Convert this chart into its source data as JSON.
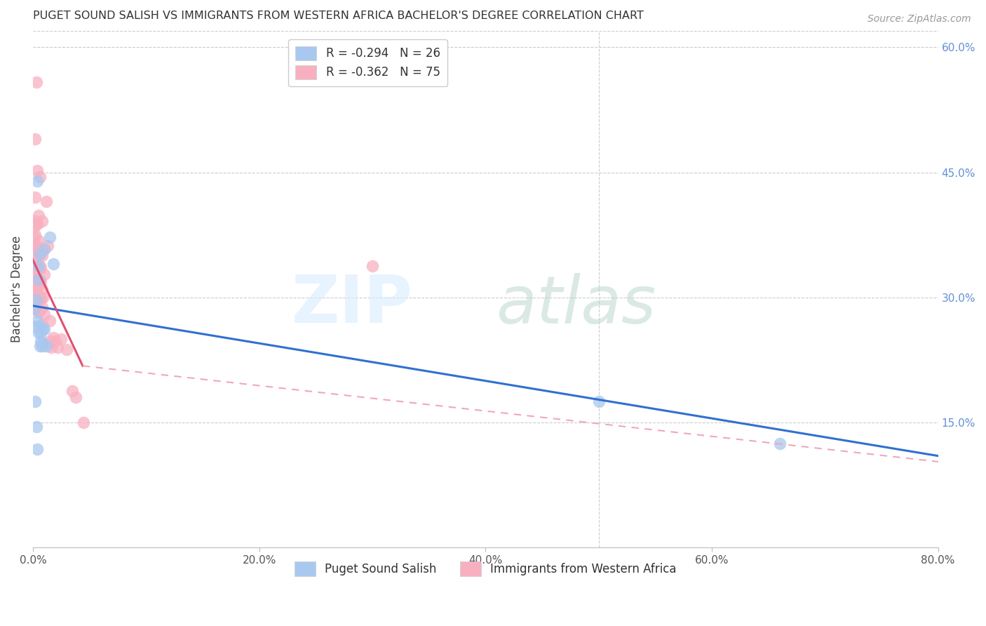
{
  "title": "PUGET SOUND SALISH VS IMMIGRANTS FROM WESTERN AFRICA BACHELOR'S DEGREE CORRELATION CHART",
  "source": "Source: ZipAtlas.com",
  "ylabel": "Bachelor's Degree",
  "background_color": "#ffffff",
  "grid_color": "#cccccc",
  "blue_scatter": [
    [
      0.001,
      0.286
    ],
    [
      0.002,
      0.265
    ],
    [
      0.002,
      0.175
    ],
    [
      0.003,
      0.145
    ],
    [
      0.003,
      0.297
    ],
    [
      0.004,
      0.118
    ],
    [
      0.004,
      0.272
    ],
    [
      0.004,
      0.44
    ],
    [
      0.005,
      0.322
    ],
    [
      0.005,
      0.258
    ],
    [
      0.005,
      0.338
    ],
    [
      0.006,
      0.242
    ],
    [
      0.006,
      0.352
    ],
    [
      0.006,
      0.265
    ],
    [
      0.007,
      0.258
    ],
    [
      0.007,
      0.248
    ],
    [
      0.008,
      0.242
    ],
    [
      0.009,
      0.262
    ],
    [
      0.009,
      0.245
    ],
    [
      0.01,
      0.262
    ],
    [
      0.01,
      0.358
    ],
    [
      0.012,
      0.242
    ],
    [
      0.015,
      0.372
    ],
    [
      0.018,
      0.34
    ],
    [
      0.5,
      0.175
    ],
    [
      0.66,
      0.125
    ]
  ],
  "pink_scatter": [
    [
      0.001,
      0.385
    ],
    [
      0.001,
      0.372
    ],
    [
      0.001,
      0.362
    ],
    [
      0.001,
      0.352
    ],
    [
      0.001,
      0.345
    ],
    [
      0.001,
      0.338
    ],
    [
      0.001,
      0.332
    ],
    [
      0.001,
      0.325
    ],
    [
      0.001,
      0.318
    ],
    [
      0.001,
      0.31
    ],
    [
      0.001,
      0.305
    ],
    [
      0.001,
      0.298
    ],
    [
      0.002,
      0.49
    ],
    [
      0.002,
      0.42
    ],
    [
      0.002,
      0.392
    ],
    [
      0.002,
      0.375
    ],
    [
      0.002,
      0.36
    ],
    [
      0.002,
      0.35
    ],
    [
      0.002,
      0.34
    ],
    [
      0.002,
      0.332
    ],
    [
      0.002,
      0.322
    ],
    [
      0.003,
      0.558
    ],
    [
      0.003,
      0.388
    ],
    [
      0.003,
      0.362
    ],
    [
      0.003,
      0.348
    ],
    [
      0.003,
      0.335
    ],
    [
      0.003,
      0.322
    ],
    [
      0.003,
      0.308
    ],
    [
      0.003,
      0.295
    ],
    [
      0.004,
      0.452
    ],
    [
      0.004,
      0.388
    ],
    [
      0.004,
      0.358
    ],
    [
      0.004,
      0.312
    ],
    [
      0.004,
      0.298
    ],
    [
      0.004,
      0.285
    ],
    [
      0.005,
      0.398
    ],
    [
      0.005,
      0.368
    ],
    [
      0.005,
      0.35
    ],
    [
      0.005,
      0.335
    ],
    [
      0.005,
      0.315
    ],
    [
      0.005,
      0.298
    ],
    [
      0.005,
      0.282
    ],
    [
      0.006,
      0.445
    ],
    [
      0.006,
      0.352
    ],
    [
      0.006,
      0.338
    ],
    [
      0.006,
      0.32
    ],
    [
      0.006,
      0.3
    ],
    [
      0.006,
      0.285
    ],
    [
      0.007,
      0.358
    ],
    [
      0.007,
      0.335
    ],
    [
      0.007,
      0.318
    ],
    [
      0.007,
      0.298
    ],
    [
      0.008,
      0.392
    ],
    [
      0.008,
      0.35
    ],
    [
      0.008,
      0.31
    ],
    [
      0.008,
      0.288
    ],
    [
      0.008,
      0.268
    ],
    [
      0.009,
      0.3
    ],
    [
      0.01,
      0.358
    ],
    [
      0.01,
      0.328
    ],
    [
      0.01,
      0.28
    ],
    [
      0.012,
      0.415
    ],
    [
      0.013,
      0.362
    ],
    [
      0.015,
      0.272
    ],
    [
      0.015,
      0.248
    ],
    [
      0.016,
      0.24
    ],
    [
      0.018,
      0.252
    ],
    [
      0.02,
      0.248
    ],
    [
      0.022,
      0.24
    ],
    [
      0.025,
      0.25
    ],
    [
      0.03,
      0.238
    ],
    [
      0.035,
      0.188
    ],
    [
      0.038,
      0.18
    ],
    [
      0.045,
      0.15
    ],
    [
      0.3,
      0.338
    ]
  ],
  "blue_line": {
    "x": [
      0.0,
      0.8
    ],
    "y": [
      0.29,
      0.11
    ]
  },
  "pink_line": {
    "x": [
      0.0,
      0.044
    ],
    "y": [
      0.345,
      0.218
    ]
  },
  "pink_line_dashed": {
    "x": [
      0.044,
      0.82
    ],
    "y": [
      0.218,
      0.1
    ]
  },
  "blue_color": "#a8c8f0",
  "blue_line_color": "#3070d0",
  "pink_color": "#f8b0c0",
  "pink_line_color": "#e05070",
  "pink_dash_color": "#f0a8b8",
  "xlim": [
    0.0,
    0.8
  ],
  "ylim": [
    0.0,
    0.62
  ],
  "x_ticks": [
    0.0,
    0.2,
    0.4,
    0.6,
    0.8
  ],
  "x_tick_labels": [
    "0.0%",
    "20.0%",
    "40.0%",
    "60.0%",
    "80.0%"
  ],
  "y_ticks_right": [
    0.15,
    0.3,
    0.45,
    0.6
  ],
  "y_tick_labels_right": [
    "15.0%",
    "30.0%",
    "45.0%",
    "60.0%"
  ],
  "R_blue": "-0.294",
  "N_blue": "26",
  "R_pink": "-0.362",
  "N_pink": "75",
  "watermark_zip_color": "#ddeeff",
  "watermark_atlas_color": "#ccdde0"
}
